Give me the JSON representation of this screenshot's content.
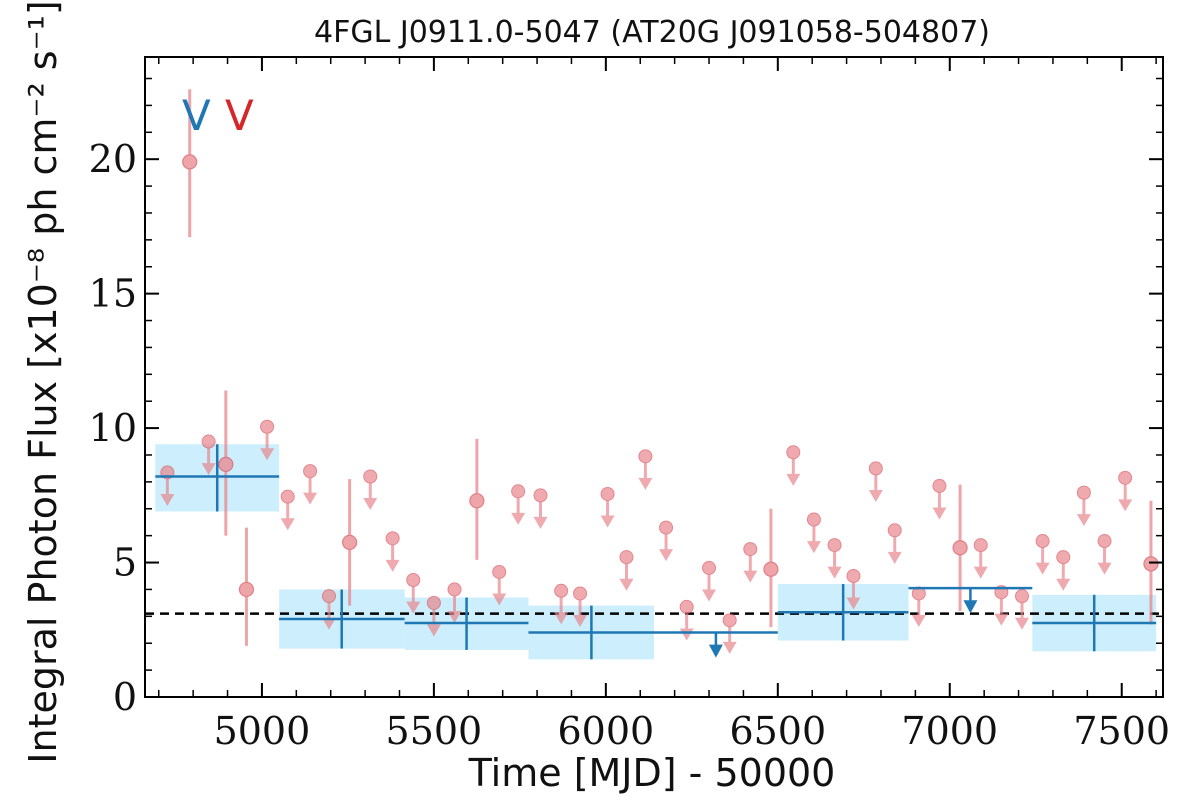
{
  "chart_data": {
    "type": "scatter",
    "title": "4FGL J0911.0-5047 (AT20G J091058-504807)",
    "xlabel": "Time [MJD] - 50000",
    "ylabel": "Integral Photon Flux [x10⁻⁸ ph cm⁻² s⁻¹]",
    "xlim": [
      4660,
      7620
    ],
    "ylim": [
      0,
      23.8
    ],
    "xticks": [
      5000,
      5500,
      6000,
      6500,
      7000,
      7500
    ],
    "yticks": [
      0,
      5,
      10,
      15,
      20
    ],
    "grid": false,
    "legend": "none",
    "tags": [
      {
        "text": "V",
        "color": "#1f77b4"
      },
      {
        "text": "V",
        "color": "#d62728"
      }
    ],
    "mean_flux": 3.1,
    "colors": {
      "bins_line": "#1f77b4",
      "bins_band": "#cdeefc",
      "monthly": "#e8878d",
      "monthly_edge": "#d9535e",
      "mean_line": "#000000"
    },
    "series": [
      {
        "type": "binned",
        "bins": [
          {
            "x0": 4690,
            "x1": 5050,
            "x": 4870,
            "y": 8.2,
            "lo": 6.9,
            "hi": 9.4
          },
          {
            "x0": 5050,
            "x1": 5415,
            "x": 5232,
            "y": 2.9,
            "lo": 1.8,
            "hi": 4.0
          },
          {
            "x0": 5415,
            "x1": 5775,
            "x": 5595,
            "y": 2.75,
            "lo": 1.75,
            "hi": 3.7
          },
          {
            "x0": 5775,
            "x1": 6140,
            "x": 5958,
            "y": 2.4,
            "lo": 1.4,
            "hi": 3.4
          },
          {
            "x0": 6140,
            "x1": 6500,
            "x": 6320,
            "y": 2.4,
            "upper_limit": true
          },
          {
            "x0": 6500,
            "x1": 6880,
            "x": 6690,
            "y": 3.15,
            "lo": 2.1,
            "hi": 4.2
          },
          {
            "x0": 6880,
            "x1": 7240,
            "x": 7060,
            "y": 4.05,
            "upper_limit": true
          },
          {
            "x0": 7240,
            "x1": 7600,
            "x": 7420,
            "y": 2.75,
            "lo": 1.7,
            "hi": 3.8
          }
        ]
      },
      {
        "type": "monthly",
        "detections": [
          {
            "x": 4790,
            "y": 19.9,
            "lo": 17.1,
            "hi": 22.6
          },
          {
            "x": 4895,
            "y": 8.65,
            "lo": 6.0,
            "hi": 11.4
          },
          {
            "x": 4955,
            "y": 4.0,
            "lo": 1.9,
            "hi": 6.3
          },
          {
            "x": 5255,
            "y": 5.75,
            "lo": 3.4,
            "hi": 8.1
          },
          {
            "x": 5625,
            "y": 7.3,
            "lo": 5.1,
            "hi": 9.6
          },
          {
            "x": 6480,
            "y": 4.75,
            "lo": 2.6,
            "hi": 7.0
          },
          {
            "x": 7030,
            "y": 5.55,
            "lo": 3.2,
            "hi": 7.9
          },
          {
            "x": 7585,
            "y": 4.95,
            "lo": 2.7,
            "hi": 7.3
          }
        ],
        "upper_limits": [
          {
            "x": 4725,
            "y": 8.35
          },
          {
            "x": 4845,
            "y": 9.5
          },
          {
            "x": 5015,
            "y": 10.05
          },
          {
            "x": 5075,
            "y": 7.45
          },
          {
            "x": 5140,
            "y": 8.4
          },
          {
            "x": 5195,
            "y": 3.75
          },
          {
            "x": 5315,
            "y": 8.2
          },
          {
            "x": 5380,
            "y": 5.9
          },
          {
            "x": 5440,
            "y": 4.35
          },
          {
            "x": 5500,
            "y": 3.5
          },
          {
            "x": 5560,
            "y": 4.0
          },
          {
            "x": 5690,
            "y": 4.65
          },
          {
            "x": 5745,
            "y": 7.65
          },
          {
            "x": 5810,
            "y": 7.5
          },
          {
            "x": 5870,
            "y": 3.95
          },
          {
            "x": 5925,
            "y": 3.85
          },
          {
            "x": 6005,
            "y": 7.55
          },
          {
            "x": 6060,
            "y": 5.2
          },
          {
            "x": 6115,
            "y": 8.95
          },
          {
            "x": 6175,
            "y": 6.3
          },
          {
            "x": 6235,
            "y": 3.35
          },
          {
            "x": 6300,
            "y": 4.8
          },
          {
            "x": 6360,
            "y": 2.85
          },
          {
            "x": 6420,
            "y": 5.5
          },
          {
            "x": 6545,
            "y": 9.1
          },
          {
            "x": 6605,
            "y": 6.6
          },
          {
            "x": 6665,
            "y": 5.65
          },
          {
            "x": 6720,
            "y": 4.5
          },
          {
            "x": 6785,
            "y": 8.5
          },
          {
            "x": 6840,
            "y": 6.2
          },
          {
            "x": 6910,
            "y": 3.85
          },
          {
            "x": 6970,
            "y": 7.85
          },
          {
            "x": 7090,
            "y": 5.65
          },
          {
            "x": 7150,
            "y": 3.9
          },
          {
            "x": 7210,
            "y": 3.75
          },
          {
            "x": 7270,
            "y": 5.8
          },
          {
            "x": 7330,
            "y": 5.2
          },
          {
            "x": 7390,
            "y": 7.6
          },
          {
            "x": 7450,
            "y": 5.8
          },
          {
            "x": 7510,
            "y": 8.15
          }
        ]
      }
    ]
  }
}
